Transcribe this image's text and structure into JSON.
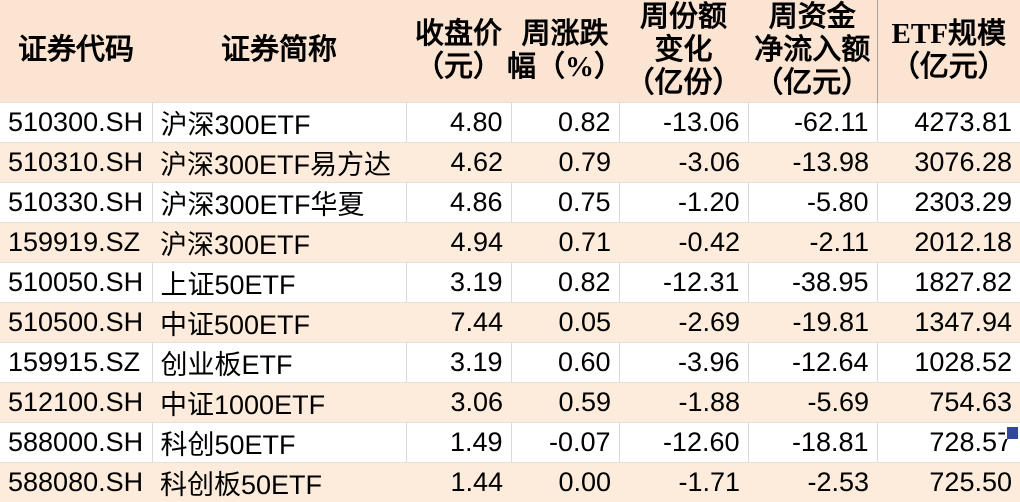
{
  "chart_data": {
    "type": "table",
    "columns": [
      {
        "key": "code",
        "label": "证券代码",
        "header_lines": [
          "证券代码"
        ]
      },
      {
        "key": "name",
        "label": "证券简称",
        "header_lines": [
          "证券简称"
        ]
      },
      {
        "key": "close-price",
        "label": "收盘价（元）",
        "header_lines": [
          "收盘价",
          "（元）"
        ]
      },
      {
        "key": "weekly-change-pct",
        "label": "周涨跌幅（%）",
        "header_lines": [
          "周涨跌",
          "幅（%）"
        ]
      },
      {
        "key": "weekly-share-change",
        "label": "周份额变化（亿份）",
        "header_lines": [
          "周份额",
          "变化",
          "（亿份）"
        ]
      },
      {
        "key": "weekly-net-inflow",
        "label": "周资金净流入额（亿元）",
        "header_lines": [
          "周资金",
          "净流入额",
          "（亿元）"
        ]
      },
      {
        "key": "etf-scale",
        "label": "ETF规模（亿元）",
        "header_lines": [
          "ETF规模",
          "（亿元）"
        ]
      }
    ],
    "rows": [
      [
        "510300.SH",
        "沪深300ETF",
        "4.80",
        "0.82",
        "-13.06",
        "-62.11",
        "4273.81"
      ],
      [
        "510310.SH",
        "沪深300ETF易方达",
        "4.62",
        "0.79",
        "-3.06",
        "-13.98",
        "3076.28"
      ],
      [
        "510330.SH",
        "沪深300ETF华夏",
        "4.86",
        "0.75",
        "-1.20",
        "-5.80",
        "2303.29"
      ],
      [
        "159919.SZ",
        "沪深300ETF",
        "4.94",
        "0.71",
        "-0.42",
        "-2.11",
        "2012.18"
      ],
      [
        "510050.SH",
        "上证50ETF",
        "3.19",
        "0.82",
        "-12.31",
        "-38.95",
        "1827.82"
      ],
      [
        "510500.SH",
        "中证500ETF",
        "7.44",
        "0.05",
        "-2.69",
        "-19.81",
        "1347.94"
      ],
      [
        "159915.SZ",
        "创业板ETF",
        "3.19",
        "0.60",
        "-3.96",
        "-12.64",
        "1028.52"
      ],
      [
        "512100.SH",
        "中证1000ETF",
        "3.06",
        "0.59",
        "-1.88",
        "-5.69",
        "754.63"
      ],
      [
        "588000.SH",
        "科创50ETF",
        "1.49",
        "-0.07",
        "-12.60",
        "-18.81",
        "728.57"
      ],
      [
        "588080.SH",
        "科创板50ETF",
        "1.44",
        "0.00",
        "-1.71",
        "-2.53",
        "725.50"
      ]
    ],
    "layout": {
      "legend": "none",
      "grid": "light-gray-gridlines-on-white-rows-only",
      "banded_rows": "alternating white / peach starting white",
      "header_rows": 1
    }
  },
  "colors": {
    "header_bg": "#fce4d2",
    "band_row_bg": "#fdebdc",
    "white_row_bg": "#ffffff",
    "grid_line": "#d9d9d9",
    "text": "#000000",
    "fill_handle": "#32489e"
  }
}
